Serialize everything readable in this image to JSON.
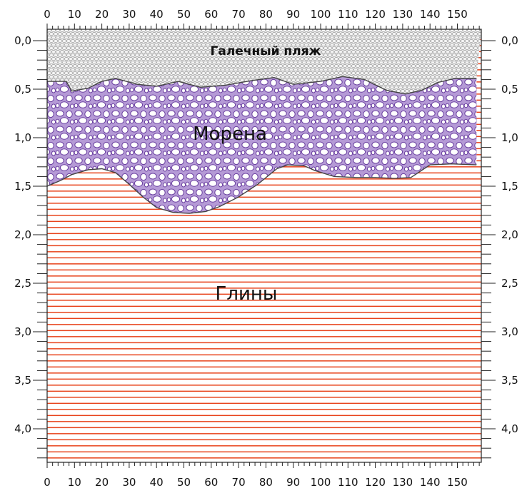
{
  "diagram": {
    "x_ticks": [
      "0",
      "10",
      "20",
      "30",
      "40",
      "50",
      "60",
      "70",
      "80",
      "90",
      "100",
      "110",
      "120",
      "130",
      "140",
      "150"
    ],
    "y_ticks": [
      "0,0",
      "0,5",
      "1,0",
      "1,5",
      "2,0",
      "2,5",
      "3,0",
      "3,5",
      "4,0"
    ],
    "layers": {
      "pebble_beach": {
        "label": "Галечный пляж",
        "color": "#f3f3f3"
      },
      "moraine": {
        "label": "Морена",
        "color": "#b9a1d8",
        "stroke": "#6a3fa0"
      },
      "clay": {
        "label": "Глины",
        "color": "#e8431c"
      }
    },
    "boundaries": {
      "beach_moraine": [
        [
          0,
          0.42
        ],
        [
          7,
          0.42
        ],
        [
          9,
          0.52
        ],
        [
          15,
          0.49
        ],
        [
          20,
          0.42
        ],
        [
          25,
          0.39
        ],
        [
          33,
          0.45
        ],
        [
          40,
          0.47
        ],
        [
          48,
          0.42
        ],
        [
          56,
          0.48
        ],
        [
          65,
          0.46
        ],
        [
          75,
          0.41
        ],
        [
          83,
          0.38
        ],
        [
          90,
          0.45
        ],
        [
          100,
          0.42
        ],
        [
          108,
          0.37
        ],
        [
          116,
          0.4
        ],
        [
          124,
          0.51
        ],
        [
          131,
          0.55
        ],
        [
          137,
          0.51
        ],
        [
          143,
          0.43
        ],
        [
          149,
          0.39
        ],
        [
          157,
          0.39
        ]
      ],
      "moraine_clay": [
        [
          0,
          1.5
        ],
        [
          5,
          1.44
        ],
        [
          9,
          1.38
        ],
        [
          15,
          1.33
        ],
        [
          20,
          1.32
        ],
        [
          25,
          1.36
        ],
        [
          30,
          1.48
        ],
        [
          35,
          1.61
        ],
        [
          40,
          1.72
        ],
        [
          46,
          1.77
        ],
        [
          52,
          1.78
        ],
        [
          58,
          1.76
        ],
        [
          63,
          1.71
        ],
        [
          70,
          1.61
        ],
        [
          77,
          1.48
        ],
        [
          84,
          1.32
        ],
        [
          88,
          1.28
        ],
        [
          94,
          1.29
        ],
        [
          98,
          1.34
        ],
        [
          105,
          1.4
        ],
        [
          113,
          1.41
        ],
        [
          120,
          1.41
        ],
        [
          127,
          1.42
        ],
        [
          133,
          1.41
        ],
        [
          140,
          1.28
        ],
        [
          148,
          1.27
        ],
        [
          157,
          1.28
        ]
      ]
    }
  }
}
